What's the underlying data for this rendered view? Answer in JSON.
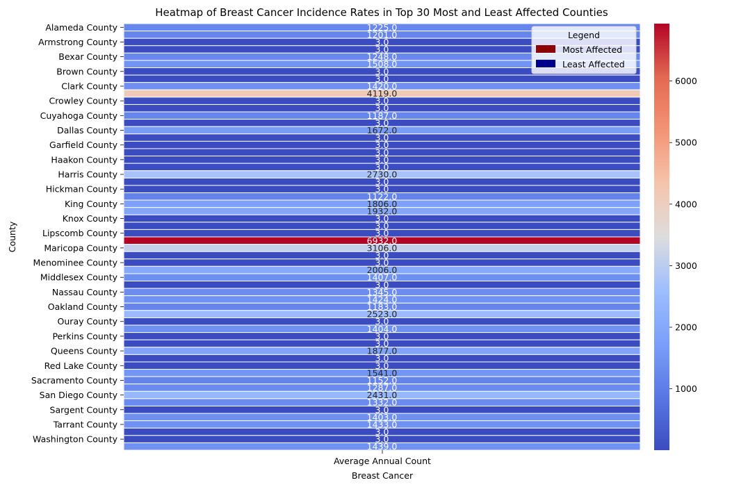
{
  "chart_data": {
    "type": "heatmap",
    "title": "Heatmap of Breast Cancer Incidence Rates in Top 30 Most and Least Affected Counties",
    "xlabel": "Breast Cancer",
    "ylabel": "County",
    "columns": [
      "Average Annual Count"
    ],
    "rows": [
      "Alameda County",
      "",
      "Armstrong County",
      "",
      "Bexar County",
      "",
      "Brown County",
      "",
      "Clark County",
      "",
      "Crowley County",
      "",
      "Cuyahoga County",
      "",
      "Dallas County",
      "",
      "Garfield County",
      "",
      "Haakon County",
      "",
      "Harris County",
      "",
      "Hickman County",
      "",
      "King County",
      "",
      "Knox County",
      "",
      "Lipscomb County",
      "",
      "Maricopa County",
      "",
      "Menominee County",
      "",
      "Middlesex County",
      "",
      "Nassau County",
      "",
      "Oakland County",
      "",
      "Ouray County",
      "",
      "Perkins County",
      "",
      "Queens County",
      "",
      "Red Lake County",
      "",
      "Sacramento County",
      "",
      "San Diego County",
      "",
      "Sargent County",
      "",
      "Tarrant County",
      "",
      "Washington County",
      ""
    ],
    "values": [
      1225,
      1201,
      3,
      3,
      1248,
      1508,
      3,
      3,
      1420,
      4119,
      3,
      3,
      1187,
      3,
      1672,
      3,
      3,
      3,
      3,
      3,
      2730,
      3,
      3,
      1122,
      1806,
      1932,
      3,
      3,
      3,
      6932,
      3106,
      3,
      3,
      2006,
      1407,
      3,
      1345,
      1424,
      1183,
      2523,
      3,
      1404,
      3,
      3,
      1877,
      3,
      3,
      1541,
      1152,
      1287,
      2431,
      1332,
      3,
      1403,
      1433,
      3,
      3,
      1439
    ],
    "cell_labels": [
      "1225.0",
      "1201.0",
      "3.0",
      "3.0",
      "1248.0",
      "1508.0",
      "3.0",
      "3.0",
      "1420.0",
      "4119.0",
      "3.0",
      "3.0",
      "1187.0",
      "3.0",
      "1672.0",
      "3.0",
      "3.0",
      "3.0",
      "3.0",
      "3.0",
      "2730.0",
      "3.0",
      "3.0",
      "1122.0",
      "1806.0",
      "1932.0",
      "3.0",
      "3.0",
      "3.0",
      "6932.0",
      "3106.0",
      "3.0",
      "3.0",
      "2006.0",
      "1407.0",
      "3.0",
      "1345.0",
      "1424.0",
      "1183.0",
      "2523.0",
      "3.0",
      "1404.0",
      "3.0",
      "3.0",
      "1877.0",
      "3.0",
      "3.0",
      "1541.0",
      "1152.0",
      "1287.0",
      "2431.0",
      "1332.0",
      "3.0",
      "1403.0",
      "1433.0",
      "3.0",
      "3.0",
      "1439.0"
    ],
    "colormap": "coolwarm",
    "vmin": 3,
    "vmax": 6932,
    "colorbar_ticks": [
      1000,
      2000,
      3000,
      4000,
      5000,
      6000
    ],
    "colorbar_tick_labels": [
      "1000",
      "2000",
      "3000",
      "4000",
      "5000",
      "6000"
    ],
    "legend": {
      "title": "Legend",
      "position": "top-right",
      "entries": [
        {
          "label": "Most Affected",
          "color": "#8b0000"
        },
        {
          "label": "Least Affected",
          "color": "#00008b"
        }
      ]
    }
  }
}
